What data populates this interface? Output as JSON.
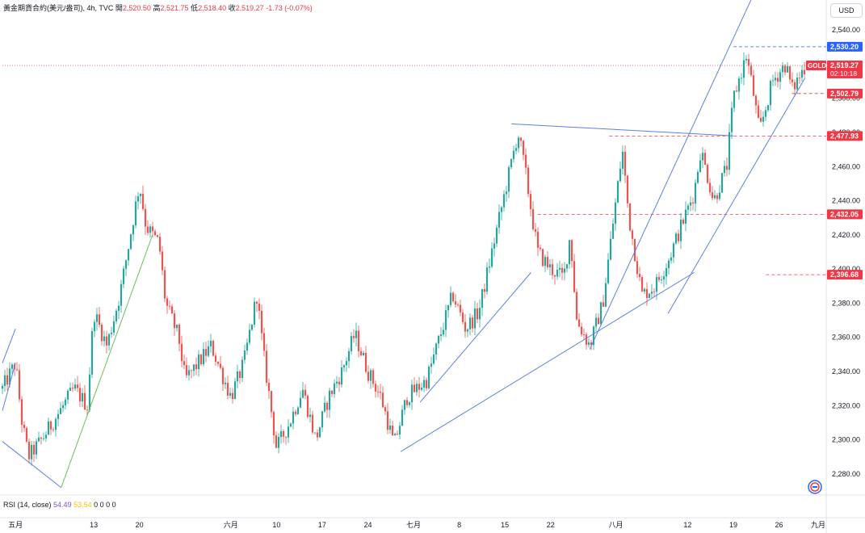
{
  "header": {
    "symbol": "黃金期貨合約(美元/盎司)",
    "interval": "4h",
    "source": "TVC",
    "open_label": "開",
    "open": "2,520.50",
    "high_label": "高",
    "high": "2,521.75",
    "low_label": "低",
    "low": "2,518.40",
    "close_label": "收",
    "close": "2,519.27",
    "change": "-1.73 (-0.07%)"
  },
  "currency_button": "USD",
  "rsi": {
    "label": "RSI (14, close)",
    "value1": "54.49",
    "value2": "53.54",
    "extras": "0 0 0 0"
  },
  "colors": {
    "up": "#26a69a",
    "down": "#ef5350",
    "trendline": "#5b7fe6",
    "green_line": "#6cbf5c",
    "price_red": "#f23645",
    "price_blue": "#2962ff"
  },
  "chart_data": {
    "type": "candlestick",
    "y_axis": {
      "range": [
        2270,
        2550
      ],
      "ticks": [
        "2,540.00",
        "2,520.00",
        "2,500.00",
        "2,480.00",
        "2,460.00",
        "2,440.00",
        "2,420.00",
        "2,400.00",
        "2,380.00",
        "2,360.00",
        "2,340.00",
        "2,320.00",
        "2,300.00",
        "2,280.00"
      ],
      "tick_values": [
        2540,
        2520,
        2500,
        2480,
        2460,
        2440,
        2420,
        2400,
        2380,
        2360,
        2340,
        2320,
        2300,
        2280
      ]
    },
    "x_axis": {
      "range_days": [
        "2024-04-29",
        "2024-09-01"
      ],
      "labels": [
        {
          "text": "五月",
          "date": "2024-05-01"
        },
        {
          "text": "13",
          "date": "2024-05-13"
        },
        {
          "text": "20",
          "date": "2024-05-20"
        },
        {
          "text": "六月",
          "date": "2024-06-03"
        },
        {
          "text": "10",
          "date": "2024-06-10"
        },
        {
          "text": "17",
          "date": "2024-06-17"
        },
        {
          "text": "24",
          "date": "2024-06-24"
        },
        {
          "text": "七月",
          "date": "2024-07-01"
        },
        {
          "text": "8",
          "date": "2024-07-08"
        },
        {
          "text": "15",
          "date": "2024-07-15"
        },
        {
          "text": "22",
          "date": "2024-07-22"
        },
        {
          "text": "八月",
          "date": "2024-08-01"
        },
        {
          "text": "12",
          "date": "2024-08-12"
        },
        {
          "text": "19",
          "date": "2024-08-19"
        },
        {
          "text": "26",
          "date": "2024-08-26"
        },
        {
          "text": "九月",
          "date": "2024-09-01"
        }
      ]
    },
    "price_path": [
      {
        "date": "2024-04-29",
        "price": 2330
      },
      {
        "date": "2024-05-01",
        "price": 2345
      },
      {
        "date": "2024-05-02",
        "price": 2310
      },
      {
        "date": "2024-05-03",
        "price": 2290
      },
      {
        "date": "2024-05-05",
        "price": 2300
      },
      {
        "date": "2024-05-08",
        "price": 2318
      },
      {
        "date": "2024-05-10",
        "price": 2330
      },
      {
        "date": "2024-05-12",
        "price": 2320
      },
      {
        "date": "2024-05-13",
        "price": 2375
      },
      {
        "date": "2024-05-15",
        "price": 2355
      },
      {
        "date": "2024-05-17",
        "price": 2385
      },
      {
        "date": "2024-05-20",
        "price": 2450
      },
      {
        "date": "2024-05-21",
        "price": 2425
      },
      {
        "date": "2024-05-23",
        "price": 2415
      },
      {
        "date": "2024-05-24",
        "price": 2380
      },
      {
        "date": "2024-05-26",
        "price": 2360
      },
      {
        "date": "2024-05-27",
        "price": 2335
      },
      {
        "date": "2024-05-29",
        "price": 2345
      },
      {
        "date": "2024-05-31",
        "price": 2355
      },
      {
        "date": "2024-06-03",
        "price": 2325
      },
      {
        "date": "2024-06-05",
        "price": 2345
      },
      {
        "date": "2024-06-07",
        "price": 2385
      },
      {
        "date": "2024-06-08",
        "price": 2350
      },
      {
        "date": "2024-06-10",
        "price": 2295
      },
      {
        "date": "2024-06-12",
        "price": 2310
      },
      {
        "date": "2024-06-14",
        "price": 2330
      },
      {
        "date": "2024-06-16",
        "price": 2300
      },
      {
        "date": "2024-06-18",
        "price": 2325
      },
      {
        "date": "2024-06-20",
        "price": 2340
      },
      {
        "date": "2024-06-22",
        "price": 2362
      },
      {
        "date": "2024-06-24",
        "price": 2340
      },
      {
        "date": "2024-06-26",
        "price": 2325
      },
      {
        "date": "2024-06-28",
        "price": 2297
      },
      {
        "date": "2024-06-30",
        "price": 2325
      },
      {
        "date": "2024-07-03",
        "price": 2335
      },
      {
        "date": "2024-07-05",
        "price": 2360
      },
      {
        "date": "2024-07-07",
        "price": 2385
      },
      {
        "date": "2024-07-09",
        "price": 2365
      },
      {
        "date": "2024-07-11",
        "price": 2375
      },
      {
        "date": "2024-07-13",
        "price": 2410
      },
      {
        "date": "2024-07-15",
        "price": 2445
      },
      {
        "date": "2024-07-17",
        "price": 2480
      },
      {
        "date": "2024-07-18",
        "price": 2460
      },
      {
        "date": "2024-07-20",
        "price": 2410
      },
      {
        "date": "2024-07-22",
        "price": 2400
      },
      {
        "date": "2024-07-24",
        "price": 2395
      },
      {
        "date": "2024-07-25",
        "price": 2420
      },
      {
        "date": "2024-07-26",
        "price": 2370
      },
      {
        "date": "2024-07-28",
        "price": 2355
      },
      {
        "date": "2024-07-30",
        "price": 2380
      },
      {
        "date": "2024-08-01",
        "price": 2440
      },
      {
        "date": "2024-08-02",
        "price": 2470
      },
      {
        "date": "2024-08-03",
        "price": 2430
      },
      {
        "date": "2024-08-05",
        "price": 2385
      },
      {
        "date": "2024-08-07",
        "price": 2390
      },
      {
        "date": "2024-08-09",
        "price": 2405
      },
      {
        "date": "2024-08-11",
        "price": 2425
      },
      {
        "date": "2024-08-13",
        "price": 2445
      },
      {
        "date": "2024-08-14",
        "price": 2470
      },
      {
        "date": "2024-08-15",
        "price": 2455
      },
      {
        "date": "2024-08-16",
        "price": 2440
      },
      {
        "date": "2024-08-18",
        "price": 2460
      },
      {
        "date": "2024-08-19",
        "price": 2500
      },
      {
        "date": "2024-08-21",
        "price": 2525
      },
      {
        "date": "2024-08-22",
        "price": 2505
      },
      {
        "date": "2024-08-23",
        "price": 2480
      },
      {
        "date": "2024-08-25",
        "price": 2510
      },
      {
        "date": "2024-08-27",
        "price": 2520
      },
      {
        "date": "2024-08-28",
        "price": 2505
      },
      {
        "date": "2024-08-30",
        "price": 2519
      }
    ],
    "trend_lines": [
      {
        "color": "blue",
        "from": {
          "date": "2024-06-29",
          "price": 2293
        },
        "to": {
          "date": "2024-08-13",
          "price": 2398
        }
      },
      {
        "color": "blue",
        "from": {
          "date": "2024-07-02",
          "price": 2322
        },
        "to": {
          "date": "2024-07-19",
          "price": 2398
        }
      },
      {
        "color": "blue",
        "from": {
          "date": "2024-07-16",
          "price": 2485
        },
        "to": {
          "date": "2024-08-19",
          "price": 2478
        }
      },
      {
        "color": "blue",
        "from": {
          "date": "2024-07-28",
          "price": 2353
        },
        "to": {
          "date": "2024-08-22",
          "price": 2560
        }
      },
      {
        "color": "blue",
        "from": {
          "date": "2024-08-09",
          "price": 2374
        },
        "to": {
          "date": "2024-08-30",
          "price": 2512
        }
      },
      {
        "color": "blue",
        "from": {
          "date": "2024-04-29",
          "price": 2317
        },
        "to": {
          "date": "2024-05-01",
          "price": 2345
        }
      },
      {
        "color": "blue",
        "from": {
          "date": "2024-04-29",
          "price": 2345
        },
        "to": {
          "date": "2024-05-01",
          "price": 2365
        }
      },
      {
        "color": "blue",
        "from": {
          "date": "2024-04-29",
          "price": 2299
        },
        "to": {
          "date": "2024-05-08",
          "price": 2272
        }
      },
      {
        "color": "green",
        "from": {
          "date": "2024-05-08",
          "price": 2272
        },
        "to": {
          "date": "2024-05-22",
          "price": 2420
        }
      }
    ],
    "horizontal_levels": [
      {
        "price": 2530.2,
        "label": "2,530.20",
        "style": "blue-dashed",
        "from_date": "2024-08-19"
      },
      {
        "price": 2519.27,
        "label": "2,519.27",
        "style": "red-dotted-full",
        "from_date": "2024-04-29",
        "sub_label": "02:10:18",
        "tag": "GOLD"
      },
      {
        "price": 2502.79,
        "label": "2,502.79",
        "style": "red-dashed",
        "from_date": "2024-08-28"
      },
      {
        "price": 2477.93,
        "label": "2,477.93",
        "style": "red-dashed",
        "from_date": "2024-07-31"
      },
      {
        "price": 2432.05,
        "label": "2,432.05",
        "style": "red-dashed",
        "from_date": "2024-07-20"
      },
      {
        "price": 2396.68,
        "label": "2,396.68",
        "style": "red-dashed",
        "from_date": "2024-08-24"
      }
    ]
  }
}
